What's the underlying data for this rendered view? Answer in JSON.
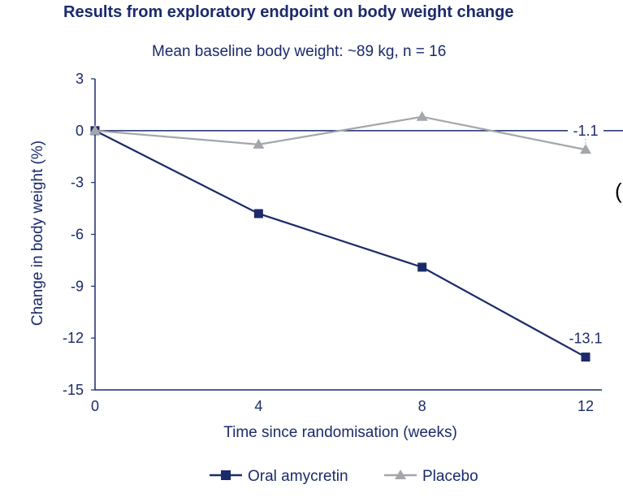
{
  "chart_data": {
    "type": "line",
    "title": "Results from exploratory endpoint on body weight change",
    "subtitle": "Mean baseline body weight: ~89 kg, n = 16",
    "xlabel": "Time since randomisation (weeks)",
    "ylabel": "Change in body weight (%)",
    "x": [
      0,
      4,
      8,
      12
    ],
    "xticks": [
      "0",
      "4",
      "8",
      "12"
    ],
    "yticks": [
      "3",
      "0",
      "-3",
      "-6",
      "-9",
      "-12",
      "-15"
    ],
    "ylim": [
      -15,
      3
    ],
    "xlim": [
      0,
      12
    ],
    "grid": false,
    "legend_position": "bottom",
    "series": [
      {
        "name": "Oral amycretin",
        "marker": "square",
        "color": "#1b2a6b",
        "values": [
          0,
          -4.8,
          -7.9,
          -13.1
        ],
        "end_label": "-13.1"
      },
      {
        "name": "Placebo",
        "marker": "triangle",
        "color": "#a3a6ab",
        "values": [
          0,
          -0.8,
          0.8,
          -1.1
        ],
        "end_label": "-1.1"
      }
    ]
  },
  "edge_glyph": "("
}
